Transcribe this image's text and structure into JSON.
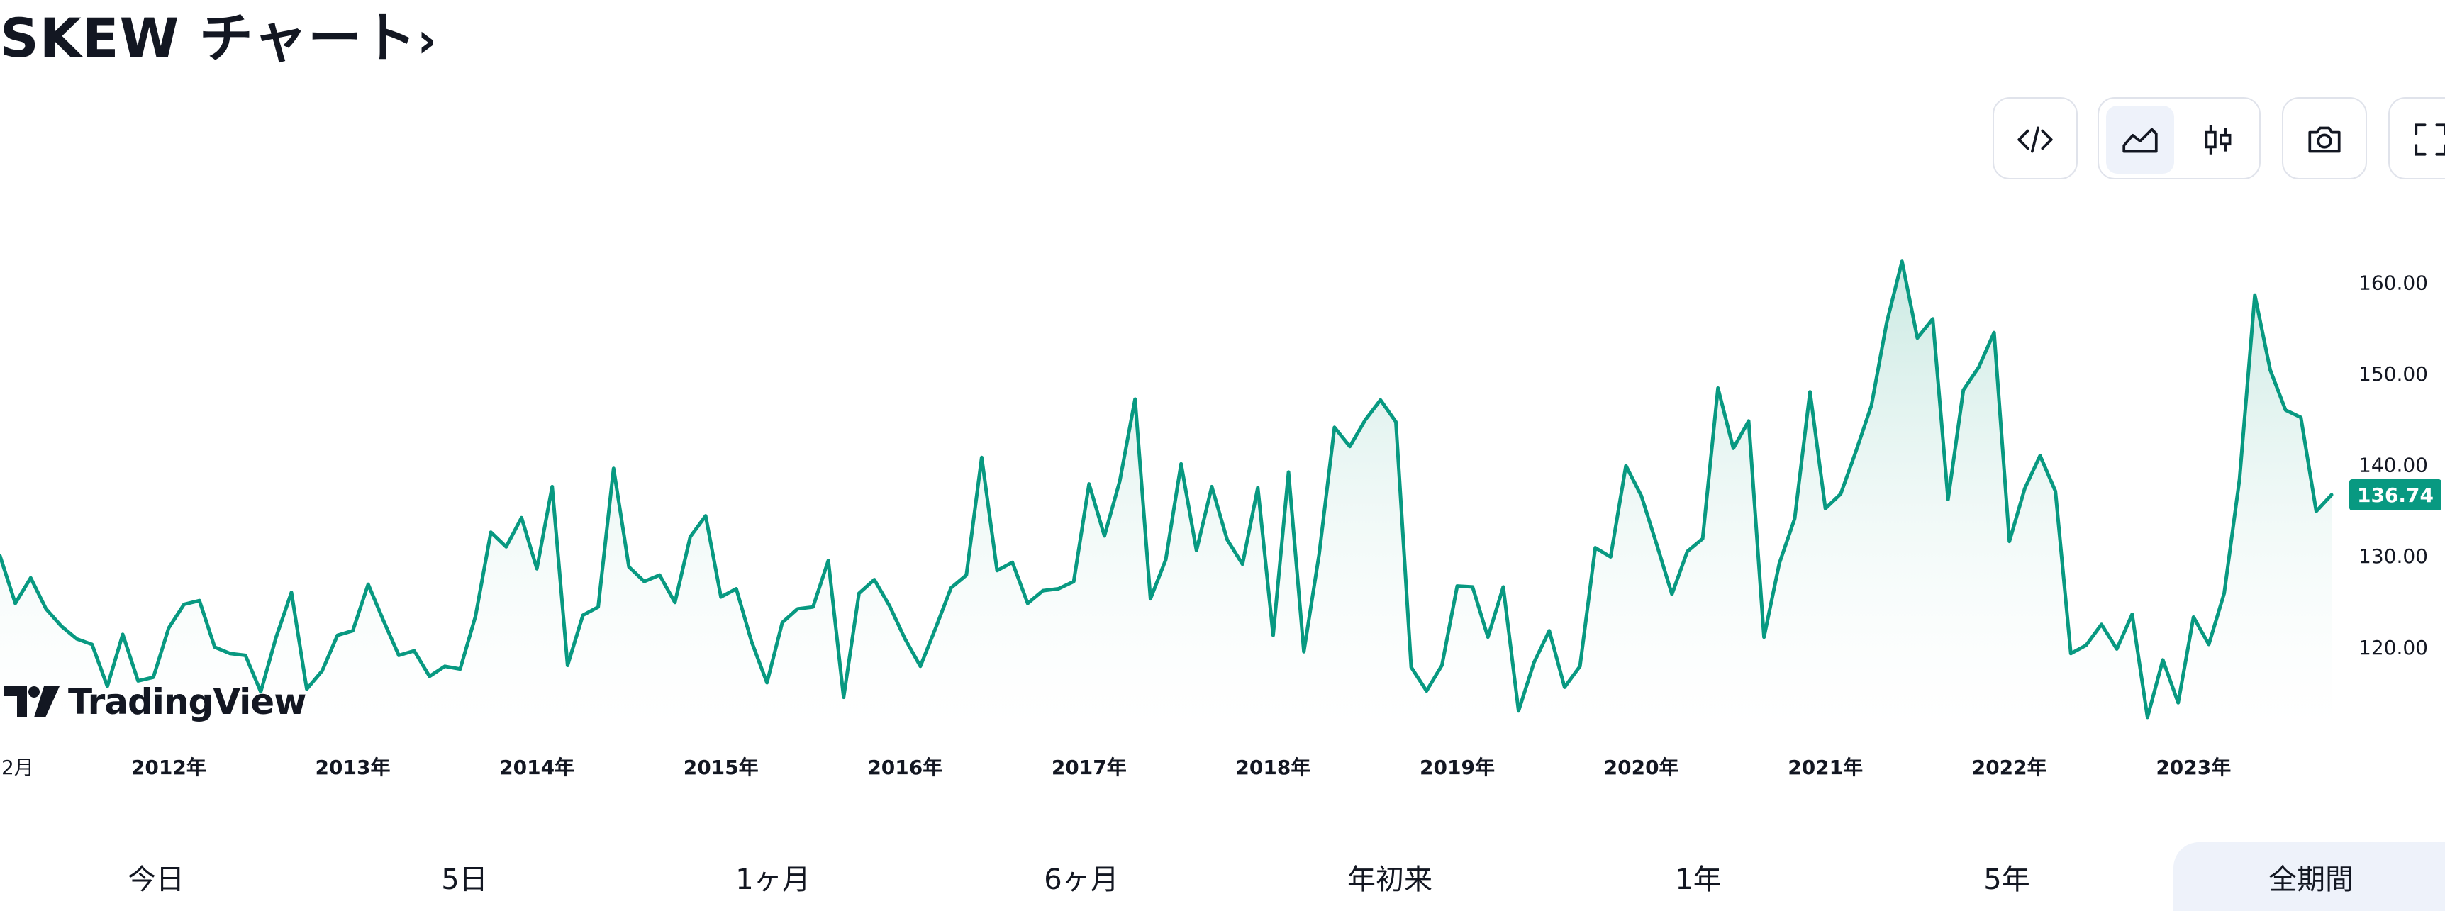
{
  "page": {
    "title": "SKEW チャート",
    "title_chevron": "›"
  },
  "toolbar": {
    "embed_icon": "code-icon",
    "area_icon": "area-chart-icon",
    "candle_icon": "candlestick-icon",
    "snapshot_icon": "camera-icon",
    "fullscreen_icon": "fullscreen-icon",
    "active": "area"
  },
  "watermark": {
    "text": "TradingView",
    "icon": "tradingview-logo-icon"
  },
  "ranges": {
    "items": [
      "今日",
      "5日",
      "1ヶ月",
      "6ヶ月",
      "年初来",
      "1年",
      "5年",
      "全期間"
    ],
    "active_index": 7
  },
  "colors": {
    "line": "#089981",
    "area_top": "#b9e2d9",
    "area_bottom": "#ffffff",
    "label_bg": "#089981",
    "label_text": "#ffffff",
    "axis_text": "#131722"
  },
  "chart_data": {
    "type": "area",
    "title": "",
    "xlabel": "",
    "ylabel": "",
    "ylim": [
      111.2,
      167.1
    ],
    "yticks": [
      "120.00",
      "130.00",
      "140.00",
      "150.00",
      "160.00"
    ],
    "ytick_values": [
      120,
      130,
      140,
      150,
      160
    ],
    "x_start": "2011-11",
    "x_step": "1 month",
    "xticks": [
      {
        "label": "2月",
        "index": 2
      },
      {
        "label": "2012年",
        "index": 11
      },
      {
        "label": "2013年",
        "index": 23
      },
      {
        "label": "2014年",
        "index": 35
      },
      {
        "label": "2015年",
        "index": 47
      },
      {
        "label": "2016年",
        "index": 59
      },
      {
        "label": "2017年",
        "index": 71
      },
      {
        "label": "2018年",
        "index": 83
      },
      {
        "label": "2019年",
        "index": 95
      },
      {
        "label": "2020年",
        "index": 107
      },
      {
        "label": "2021年",
        "index": 119
      },
      {
        "label": "2022年",
        "index": 131
      },
      {
        "label": "2023年",
        "index": 143
      }
    ],
    "last_value": "136.74",
    "series": [
      {
        "values": [
          130.0,
          124.8,
          127.6,
          124.2,
          122.3,
          120.9,
          120.3,
          115.7,
          121.4,
          116.3,
          116.7,
          122.1,
          124.7,
          125.1,
          120.0,
          119.3,
          119.1,
          115.1,
          121.1,
          126.0,
          115.4,
          117.4,
          121.3,
          121.8,
          126.9,
          122.9,
          119.1,
          119.6,
          116.8,
          117.9,
          117.6,
          123.4,
          132.6,
          131.0,
          134.2,
          128.6,
          137.6,
          118.0,
          123.5,
          124.4,
          139.6,
          128.8,
          127.2,
          127.9,
          124.9,
          132.1,
          134.4,
          125.5,
          126.4,
          120.6,
          116.1,
          122.7,
          124.2,
          124.4,
          129.5,
          114.5,
          125.9,
          127.4,
          124.5,
          120.9,
          117.9,
          122.1,
          126.5,
          127.9,
          140.8,
          128.4,
          129.3,
          124.8,
          126.2,
          126.4,
          127.2,
          137.9,
          132.2,
          138.2,
          147.2,
          125.3,
          129.6,
          140.1,
          130.6,
          137.6,
          131.8,
          129.1,
          137.5,
          121.3,
          139.2,
          119.5,
          130.2,
          144.1,
          142.0,
          144.9,
          147.1,
          144.7,
          117.8,
          115.2,
          118.0,
          126.7,
          126.6,
          121.1,
          126.6,
          113.0,
          118.3,
          121.8,
          115.6,
          117.9,
          130.9,
          129.9,
          139.9,
          136.6,
          131.3,
          125.8,
          130.5,
          131.9,
          148.4,
          141.8,
          144.8,
          121.1,
          129.2,
          134.1,
          148.0,
          135.2,
          136.8,
          141.5,
          146.5,
          155.6,
          162.3,
          153.9,
          156.0,
          136.2,
          148.2,
          150.7,
          154.5,
          131.6,
          137.4,
          141.0,
          137.1,
          119.3,
          120.2,
          122.5,
          119.8,
          123.6,
          112.3,
          118.6,
          113.9,
          123.3,
          120.3,
          125.9,
          138.4,
          158.6,
          150.4,
          146.0,
          145.2,
          134.9,
          136.7
        ]
      }
    ]
  }
}
